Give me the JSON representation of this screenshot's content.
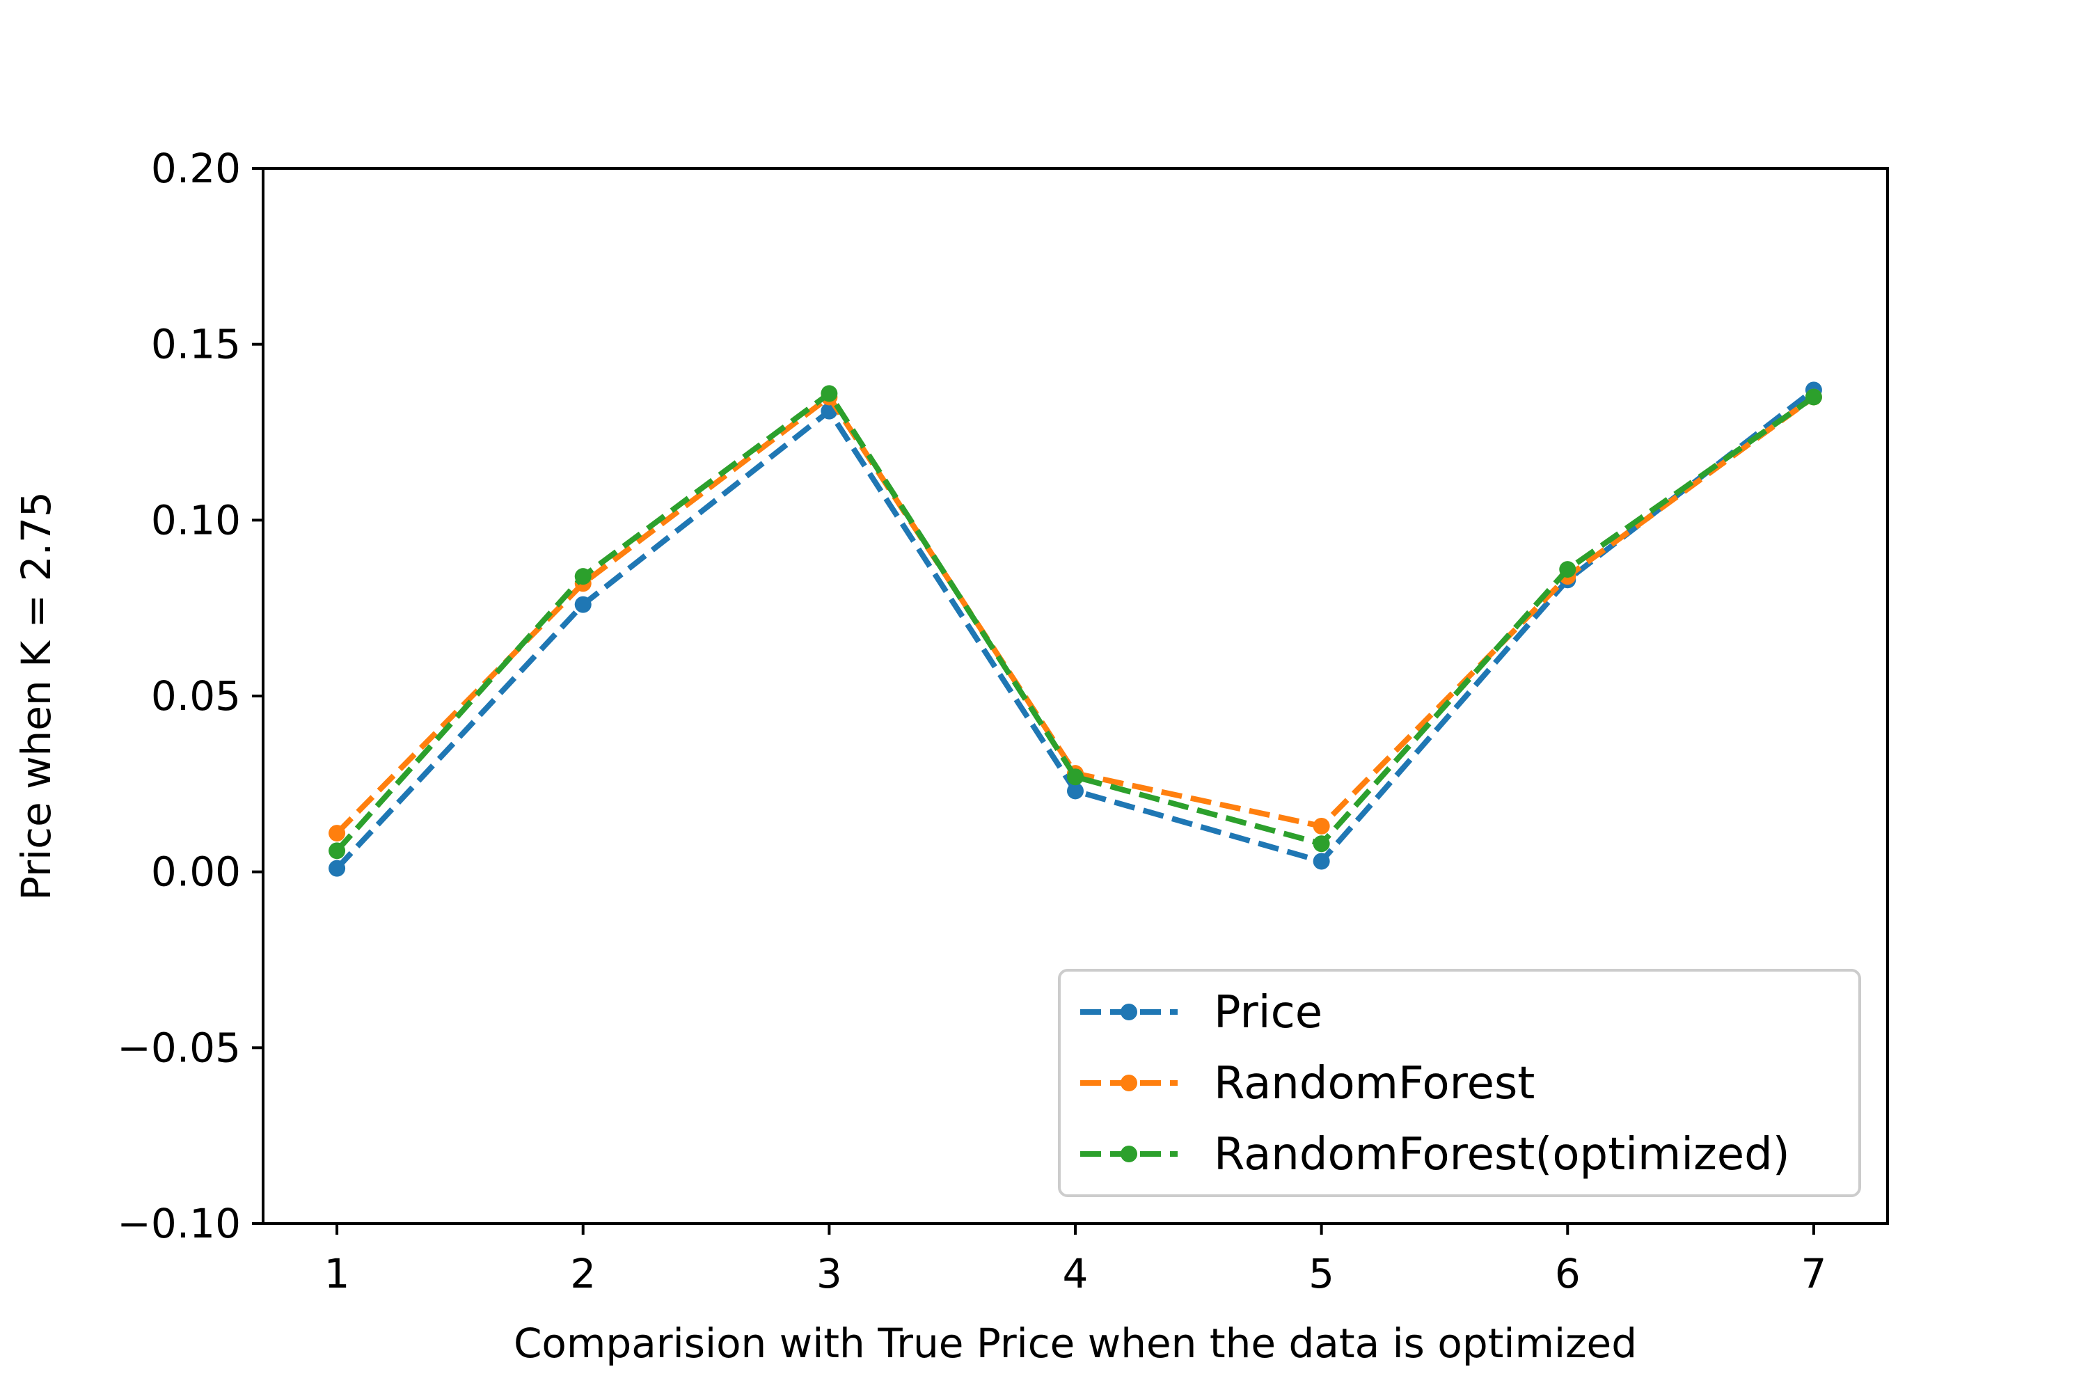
{
  "chart_data": {
    "type": "line",
    "title": "",
    "xlabel": "Comparision with True Price when the data is optimized",
    "ylabel": "Price when K = 2.75",
    "x": [
      1,
      2,
      3,
      4,
      5,
      6,
      7
    ],
    "xticks": [
      "1",
      "2",
      "3",
      "4",
      "5",
      "6",
      "7"
    ],
    "yticks": [
      "0.20",
      "0.15",
      "0.10",
      "0.05",
      "0.00",
      "−0.05",
      "−0.10"
    ],
    "ytick_values": [
      0.2,
      0.15,
      0.1,
      0.05,
      0.0,
      -0.05,
      -0.1
    ],
    "xlim": [
      0.7,
      7.3
    ],
    "ylim": [
      -0.1,
      0.2
    ],
    "grid": false,
    "legend_position": "lower-right",
    "series": [
      {
        "name": "Price",
        "color": "#1f77b4",
        "values": [
          0.001,
          0.076,
          0.131,
          0.023,
          0.003,
          0.083,
          0.137
        ]
      },
      {
        "name": "RandomForest",
        "color": "#ff7f0e",
        "values": [
          0.011,
          0.082,
          0.135,
          0.028,
          0.013,
          0.084,
          0.135
        ]
      },
      {
        "name": "RandomForest(optimized)",
        "color": "#2ca02c",
        "values": [
          0.006,
          0.084,
          0.136,
          0.027,
          0.008,
          0.086,
          0.135
        ]
      }
    ]
  }
}
